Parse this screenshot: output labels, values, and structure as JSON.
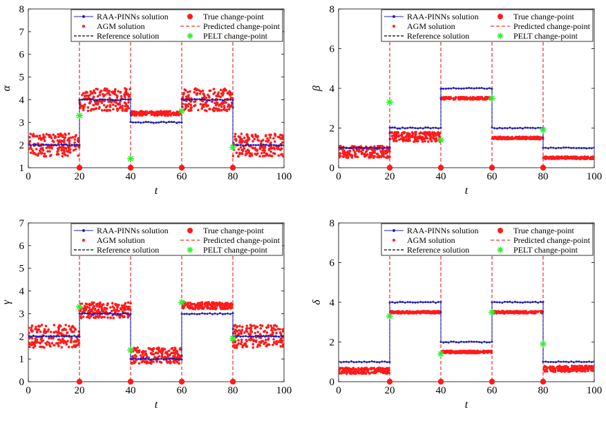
{
  "colors": {
    "raa_pinns": "#1f1fbf",
    "agm": "#ff1a1a",
    "reference": "#000000",
    "true_cp": "#ff1a1a",
    "predicted_cp": "#e00000",
    "pelt": "#33ee33"
  },
  "chart_data": [
    {
      "id": "alpha",
      "type": "scatter",
      "xlabel": "t",
      "ylabel": "α",
      "xlim": [
        0,
        100
      ],
      "ylim": [
        1,
        8
      ],
      "xticks": [
        0,
        20,
        40,
        60,
        80,
        100
      ],
      "yticks": [
        1,
        2,
        3,
        4,
        5,
        6,
        7,
        8
      ],
      "legend": {
        "placement": "top-right",
        "entries": [
          "RAA-PINNs solution",
          "True change-point",
          "AGM solution",
          "Predicted change-point",
          "Reference solution",
          "PELT change-point"
        ]
      },
      "reference_segments": [
        [
          0,
          20,
          2
        ],
        [
          20,
          40,
          4
        ],
        [
          40,
          60,
          3
        ],
        [
          60,
          80,
          4
        ],
        [
          80,
          100,
          2
        ]
      ],
      "raa_pinns_segments": [
        [
          0,
          20,
          2
        ],
        [
          20,
          40,
          4
        ],
        [
          40,
          60,
          3
        ],
        [
          60,
          80,
          4
        ],
        [
          80,
          100,
          2
        ]
      ],
      "agm_segments": [
        [
          0,
          20,
          1.5,
          2.5
        ],
        [
          20,
          40,
          3.5,
          4.5
        ],
        [
          40,
          60,
          3.3,
          3.5
        ],
        [
          60,
          80,
          3.5,
          4.5
        ],
        [
          80,
          100,
          1.5,
          2.5
        ]
      ],
      "true_change_points": [
        20,
        40,
        60,
        80
      ],
      "predicted_change_points": [
        20,
        40,
        60,
        80
      ],
      "pelt_change_points": [
        [
          20,
          3.3
        ],
        [
          40,
          1.4
        ],
        [
          60,
          3.5
        ],
        [
          80,
          1.9
        ]
      ]
    },
    {
      "id": "beta",
      "type": "scatter",
      "xlabel": "t",
      "ylabel": "β",
      "xlim": [
        0,
        100
      ],
      "ylim": [
        0,
        8
      ],
      "xticks": [
        0,
        20,
        40,
        60,
        80,
        100
      ],
      "yticks": [
        0,
        2,
        4,
        6,
        8
      ],
      "legend": {
        "placement": "top-right",
        "entries": [
          "RAA-PINNs solution",
          "True change-point",
          "AGM solution",
          "Predicted change-point",
          "Reference solution",
          "PELT change-point"
        ]
      },
      "reference_segments": [
        [
          0,
          20,
          1
        ],
        [
          20,
          40,
          2
        ],
        [
          40,
          60,
          4
        ],
        [
          60,
          80,
          2
        ],
        [
          80,
          100,
          1
        ]
      ],
      "raa_pinns_segments": [
        [
          0,
          20,
          1
        ],
        [
          20,
          40,
          2
        ],
        [
          40,
          60,
          4
        ],
        [
          60,
          80,
          2
        ],
        [
          80,
          100,
          1
        ]
      ],
      "agm_segments": [
        [
          0,
          20,
          0.5,
          1.1
        ],
        [
          20,
          40,
          1.3,
          1.8
        ],
        [
          40,
          60,
          3.5,
          3.5
        ],
        [
          60,
          80,
          1.5,
          1.5
        ],
        [
          80,
          100,
          0.5,
          0.5
        ]
      ],
      "true_change_points": [
        20,
        40,
        60,
        80
      ],
      "predicted_change_points": [
        20,
        40,
        60,
        80
      ],
      "pelt_change_points": [
        [
          20,
          3.3
        ],
        [
          40,
          1.4
        ],
        [
          60,
          3.5
        ],
        [
          80,
          1.9
        ]
      ]
    },
    {
      "id": "gamma",
      "type": "scatter",
      "xlabel": "t",
      "ylabel": "γ",
      "xlim": [
        0,
        100
      ],
      "ylim": [
        0,
        7
      ],
      "xticks": [
        0,
        20,
        40,
        60,
        80,
        100
      ],
      "yticks": [
        0,
        1,
        2,
        3,
        4,
        5,
        6,
        7
      ],
      "legend": {
        "placement": "top-right",
        "entries": [
          "RAA-PINNs solution",
          "True change-point",
          "AGM solution",
          "Predicted change-point",
          "Reference solution",
          "PELT change-point"
        ]
      },
      "reference_segments": [
        [
          0,
          20,
          2
        ],
        [
          20,
          40,
          3
        ],
        [
          40,
          60,
          1
        ],
        [
          60,
          80,
          3
        ],
        [
          80,
          100,
          2
        ]
      ],
      "raa_pinns_segments": [
        [
          0,
          20,
          2
        ],
        [
          20,
          40,
          3
        ],
        [
          40,
          60,
          1
        ],
        [
          60,
          80,
          3
        ],
        [
          80,
          100,
          2
        ]
      ],
      "agm_segments": [
        [
          0,
          20,
          1.5,
          2.5
        ],
        [
          20,
          40,
          2.8,
          3.5
        ],
        [
          40,
          60,
          0.8,
          1.5
        ],
        [
          60,
          80,
          3.2,
          3.5
        ],
        [
          80,
          100,
          1.5,
          2.5
        ]
      ],
      "true_change_points": [
        20,
        40,
        60,
        80
      ],
      "predicted_change_points": [
        20,
        40,
        60,
        80
      ],
      "pelt_change_points": [
        [
          20,
          3.3
        ],
        [
          40,
          1.4
        ],
        [
          60,
          3.5
        ],
        [
          80,
          1.9
        ]
      ]
    },
    {
      "id": "delta",
      "type": "scatter",
      "xlabel": "t",
      "ylabel": "δ",
      "xlim": [
        0,
        100
      ],
      "ylim": [
        0,
        8
      ],
      "xticks": [
        0,
        20,
        40,
        60,
        80,
        100
      ],
      "yticks": [
        0,
        2,
        4,
        6,
        8
      ],
      "legend": {
        "placement": "top-right",
        "entries": [
          "RAA-PINNs solution",
          "True change-point",
          "AGM solution",
          "Predicted change-point",
          "Reference solution",
          "PELT change-point"
        ]
      },
      "reference_segments": [
        [
          0,
          20,
          1
        ],
        [
          20,
          40,
          4
        ],
        [
          40,
          60,
          2
        ],
        [
          60,
          80,
          4
        ],
        [
          80,
          100,
          1
        ]
      ],
      "raa_pinns_segments": [
        [
          0,
          20,
          1
        ],
        [
          20,
          40,
          4
        ],
        [
          40,
          60,
          2
        ],
        [
          60,
          80,
          4
        ],
        [
          80,
          100,
          1
        ]
      ],
      "agm_segments": [
        [
          0,
          20,
          0.4,
          0.7
        ],
        [
          20,
          40,
          3.5,
          3.5
        ],
        [
          40,
          60,
          1.5,
          1.5
        ],
        [
          60,
          80,
          3.5,
          3.5
        ],
        [
          80,
          100,
          0.5,
          0.8
        ]
      ],
      "true_change_points": [
        20,
        40,
        60,
        80
      ],
      "predicted_change_points": [
        20,
        40,
        60,
        80
      ],
      "pelt_change_points": [
        [
          20,
          3.3
        ],
        [
          40,
          1.4
        ],
        [
          60,
          3.5
        ],
        [
          80,
          1.9
        ]
      ]
    }
  ]
}
